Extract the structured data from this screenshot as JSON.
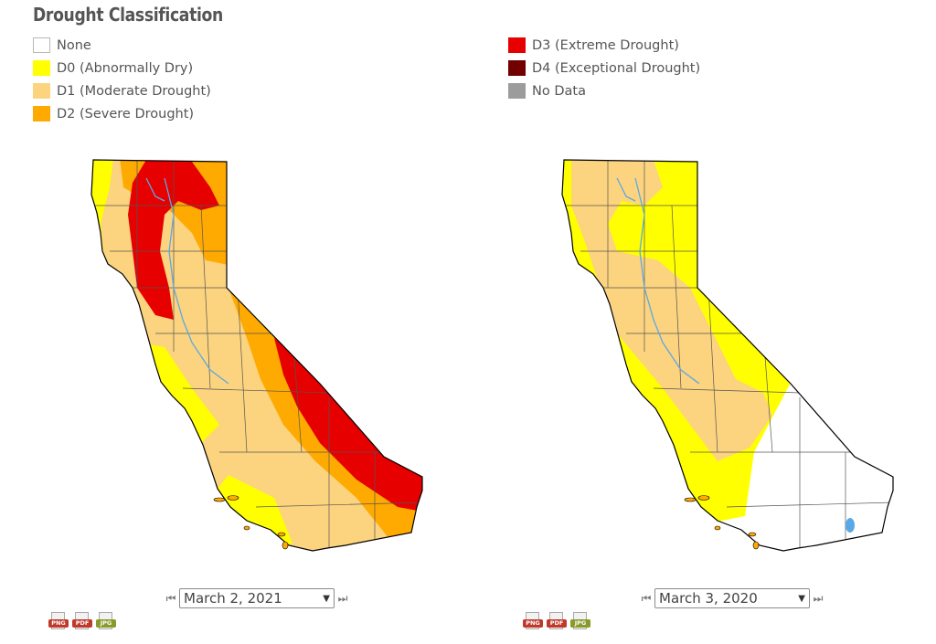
{
  "title": "Drought Classification",
  "legend": {
    "left": [
      {
        "label": "None",
        "color": "#ffffff"
      },
      {
        "label": "D0 (Abnormally Dry)",
        "color": "#ffff00"
      },
      {
        "label": "D1 (Moderate Drought)",
        "color": "#fcd37f"
      },
      {
        "label": "D2 (Severe Drought)",
        "color": "#ffaa00"
      }
    ],
    "right": [
      {
        "label": "D3 (Extreme Drought)",
        "color": "#e60000"
      },
      {
        "label": "D4 (Exceptional Drought)",
        "color": "#730000"
      },
      {
        "label": "No Data",
        "color": "#9c9c9c"
      }
    ]
  },
  "maps": [
    {
      "date": "March 2, 2021",
      "prev_icon": "rewind-icon",
      "next_icon": "fast-forward-icon",
      "downloads": [
        "PNG",
        "PDF",
        "JPG"
      ]
    },
    {
      "date": "March 3, 2020",
      "prev_icon": "rewind-icon",
      "next_icon": "fast-forward-icon",
      "downloads": [
        "PNG",
        "PDF",
        "JPG"
      ]
    }
  ],
  "download_colors": {
    "PNG": "#c0392b",
    "PDF": "#c0392b",
    "JPG": "#8a9a2a"
  },
  "colors": {
    "none": "#ffffff",
    "d0": "#ffff00",
    "d1": "#fcd37f",
    "d2": "#ffaa00",
    "d3": "#e60000",
    "d4": "#730000",
    "no_data": "#9c9c9c",
    "border": "#000000",
    "water": "#5aa9e6"
  }
}
